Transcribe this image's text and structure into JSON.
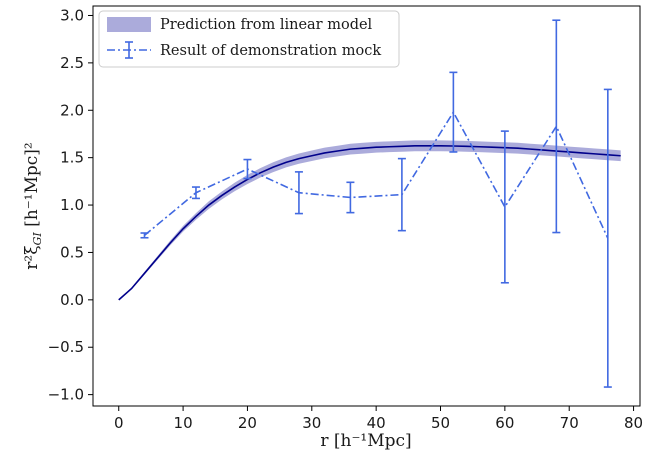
{
  "chart_data": {
    "type": "line",
    "xlabel": "r [h⁻¹Mpc]",
    "ylabel": "r²ξ",
    "ylabel_sub": "GI",
    "ylabel_unit": " [h⁻¹Mpc]²",
    "xlim": [
      -4,
      81
    ],
    "ylim": [
      -1.12,
      3.1
    ],
    "xticks": [
      0,
      10,
      20,
      30,
      40,
      50,
      60,
      70,
      80
    ],
    "xtick_labels": [
      "0",
      "10",
      "20",
      "30",
      "40",
      "50",
      "60",
      "70",
      "80"
    ],
    "yticks": [
      -1.0,
      -0.5,
      0.0,
      0.5,
      1.0,
      1.5,
      2.0,
      2.5,
      3.0
    ],
    "ytick_labels": [
      "−1.0",
      "−0.5",
      "0.0",
      "0.5",
      "1.0",
      "1.5",
      "2.0",
      "2.5",
      "3.0"
    ],
    "grid": false,
    "legend_position": "top-left",
    "legend": [
      "Prediction from linear model",
      "Result of demonstration mock"
    ],
    "model": {
      "name": "Prediction from linear model",
      "color": "#00008b",
      "band_color": "#8888cc",
      "x": [
        0,
        2,
        4,
        6,
        8,
        10,
        12,
        14,
        16,
        18,
        20,
        22,
        24,
        26,
        28,
        30,
        32,
        34,
        36,
        38,
        40,
        42,
        44,
        46,
        48,
        50,
        52,
        54,
        56,
        58,
        60,
        62,
        64,
        66,
        68,
        70,
        72,
        74,
        76,
        78
      ],
      "y": [
        0.0,
        0.12,
        0.28,
        0.44,
        0.6,
        0.75,
        0.88,
        1.0,
        1.1,
        1.19,
        1.27,
        1.34,
        1.4,
        1.45,
        1.49,
        1.52,
        1.55,
        1.57,
        1.59,
        1.6,
        1.61,
        1.615,
        1.62,
        1.625,
        1.625,
        1.625,
        1.623,
        1.62,
        1.615,
        1.61,
        1.605,
        1.6,
        1.59,
        1.58,
        1.57,
        1.56,
        1.55,
        1.54,
        1.53,
        1.52
      ],
      "band_halfwidth": [
        0.0,
        0.01,
        0.015,
        0.02,
        0.025,
        0.03,
        0.035,
        0.04,
        0.042,
        0.045,
        0.048,
        0.05,
        0.052,
        0.053,
        0.054,
        0.055,
        0.056,
        0.056,
        0.057,
        0.057,
        0.057,
        0.057,
        0.057,
        0.057,
        0.057,
        0.057,
        0.057,
        0.057,
        0.057,
        0.057,
        0.057,
        0.057,
        0.057,
        0.057,
        0.057,
        0.057,
        0.057,
        0.057,
        0.057,
        0.057
      ]
    },
    "mock": {
      "name": "Result of demonstration mock",
      "color": "#4169e1",
      "x": [
        4,
        12,
        20,
        28,
        36,
        44,
        52,
        60,
        68,
        76
      ],
      "y": [
        0.68,
        1.13,
        1.38,
        1.13,
        1.08,
        1.11,
        1.98,
        0.98,
        1.83,
        0.65
      ],
      "yerr": [
        0.025,
        0.06,
        0.1,
        0.22,
        0.16,
        0.38,
        0.42,
        0.8,
        1.12,
        1.57
      ]
    }
  }
}
